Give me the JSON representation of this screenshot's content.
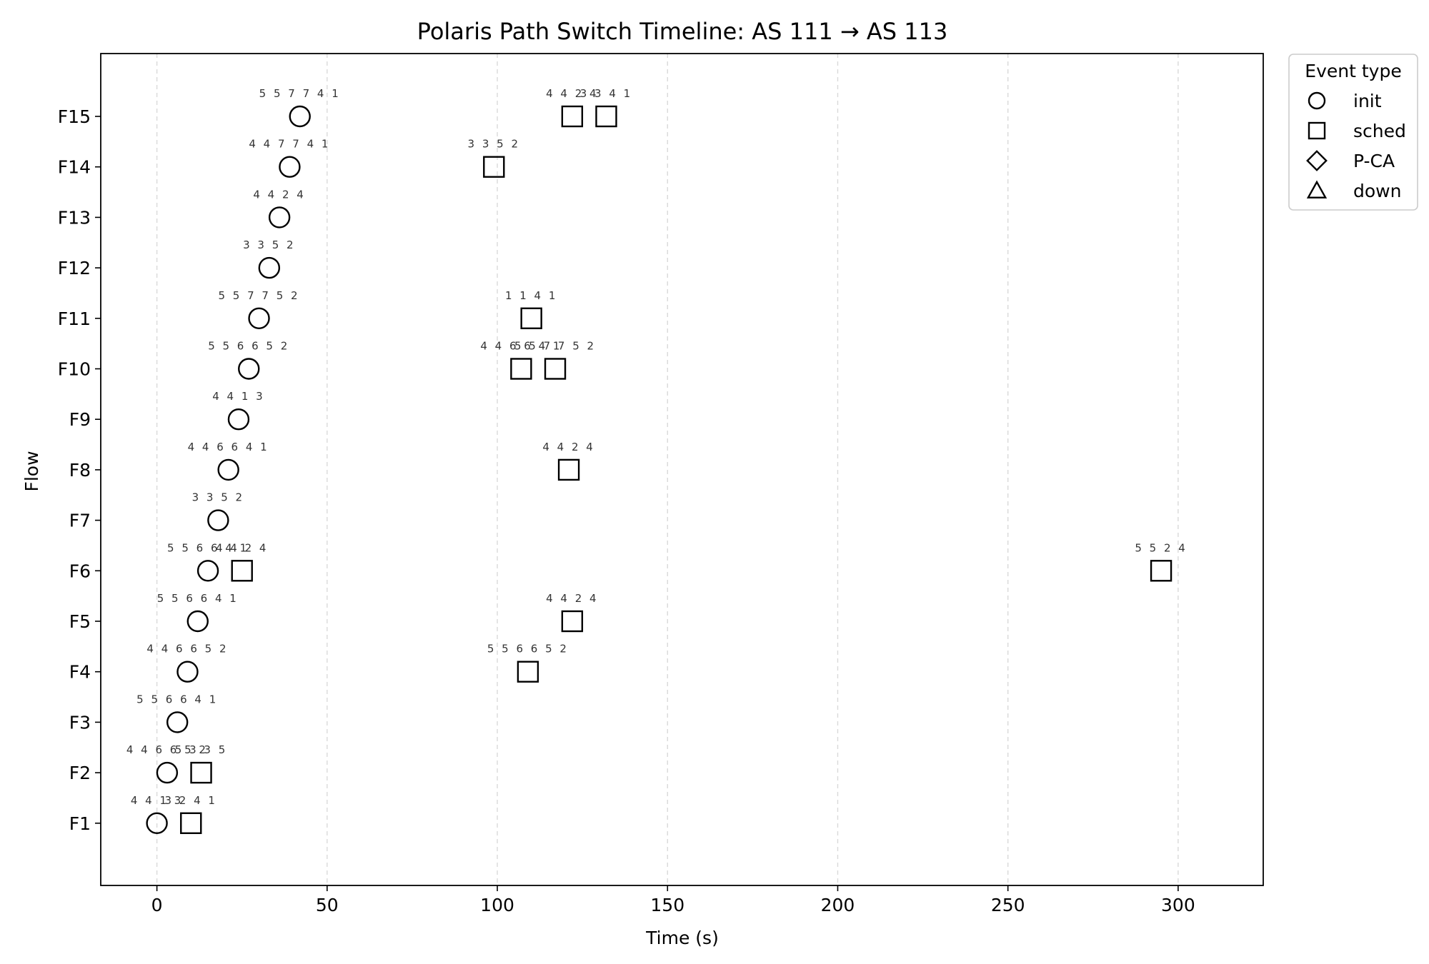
{
  "chart_data": {
    "type": "scatter",
    "title": "Polaris Path Switch Timeline: AS 111 → AS 113",
    "xlabel": "Time (s)",
    "ylabel": "Flow",
    "xlim": [
      -16.5,
      325
    ],
    "x_ticks": [
      0,
      50,
      100,
      150,
      200,
      250,
      300
    ],
    "flows": [
      "F1",
      "F2",
      "F3",
      "F4",
      "F5",
      "F6",
      "F7",
      "F8",
      "F9",
      "F10",
      "F11",
      "F12",
      "F13",
      "F14",
      "F15"
    ],
    "grid": "vertical dashed",
    "legend": {
      "title": "Event type",
      "placement": "outside top-right",
      "entries": [
        {
          "label": "init",
          "marker": "circle"
        },
        {
          "label": "sched",
          "marker": "square"
        },
        {
          "label": "P-CA",
          "marker": "diamond"
        },
        {
          "label": "down",
          "marker": "triangle"
        }
      ]
    },
    "events": [
      {
        "flow": "F1",
        "time": 0,
        "type": "init",
        "label": "4 4 1 3"
      },
      {
        "flow": "F1",
        "time": 10,
        "type": "sched",
        "label": "3 2 4 1"
      },
      {
        "flow": "F2",
        "time": 3,
        "type": "init",
        "label": "4 4 6 6 5 2"
      },
      {
        "flow": "F2",
        "time": 13,
        "type": "sched",
        "label": "5 3 3 5"
      },
      {
        "flow": "F3",
        "time": 6,
        "type": "init",
        "label": "5 5 6 6 4 1"
      },
      {
        "flow": "F4",
        "time": 9,
        "type": "init",
        "label": "4 4 6 6 5 2"
      },
      {
        "flow": "F4",
        "time": 109,
        "type": "sched",
        "label": "5 5 6 6 5 2"
      },
      {
        "flow": "F5",
        "time": 12,
        "type": "init",
        "label": "5 5 6 6 4 1"
      },
      {
        "flow": "F5",
        "time": 122,
        "type": "sched",
        "label": "4 4 2 4"
      },
      {
        "flow": "F6",
        "time": 15,
        "type": "init",
        "label": "5 5 6 6 4 1"
      },
      {
        "flow": "F6",
        "time": 25,
        "type": "sched",
        "label": "4 4 2 4"
      },
      {
        "flow": "F6",
        "time": 295,
        "type": "sched",
        "label": "5 5 2 4"
      },
      {
        "flow": "F7",
        "time": 18,
        "type": "init",
        "label": "3 3 5 2"
      },
      {
        "flow": "F8",
        "time": 21,
        "type": "init",
        "label": "4 4 6 6 4 1"
      },
      {
        "flow": "F8",
        "time": 121,
        "type": "sched",
        "label": "4 4 2 4"
      },
      {
        "flow": "F9",
        "time": 24,
        "type": "init",
        "label": "4 4 1 3"
      },
      {
        "flow": "F10",
        "time": 27,
        "type": "init",
        "label": "5 5 6 6 5 2"
      },
      {
        "flow": "F10",
        "time": 107,
        "type": "sched",
        "label": "4 4 6 6 4 1"
      },
      {
        "flow": "F10",
        "time": 117,
        "type": "sched",
        "label": "5 5 7 7 5 2"
      },
      {
        "flow": "F11",
        "time": 30,
        "type": "init",
        "label": "5 5 7 7 5 2"
      },
      {
        "flow": "F11",
        "time": 110,
        "type": "sched",
        "label": "1 1 4 1"
      },
      {
        "flow": "F12",
        "time": 33,
        "type": "init",
        "label": "3 3 5 2"
      },
      {
        "flow": "F13",
        "time": 36,
        "type": "init",
        "label": "4 4 2 4"
      },
      {
        "flow": "F14",
        "time": 39,
        "type": "init",
        "label": "4 4 7 7 4 1"
      },
      {
        "flow": "F14",
        "time": 99,
        "type": "sched",
        "label": "3 3 5 2"
      },
      {
        "flow": "F15",
        "time": 42,
        "type": "init",
        "label": "5 5 7 7 4 1"
      },
      {
        "flow": "F15",
        "time": 122,
        "type": "sched",
        "label": "4 4 2 4"
      },
      {
        "flow": "F15",
        "time": 132,
        "type": "sched",
        "label": "3 3 4 1"
      }
    ]
  }
}
